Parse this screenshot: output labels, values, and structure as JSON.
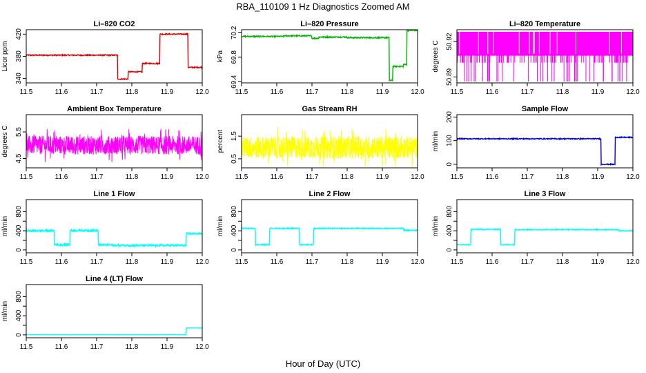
{
  "figure": {
    "title": "RBA_110109  1 Hz Diagnostics Zoomed AM",
    "xlabel": "Hour of Day (UTC)"
  },
  "chart_data": [
    {
      "type": "line",
      "title": "Li–820 CO2",
      "ylabel": "Licor ppm",
      "color": "#e00000",
      "xlim": [
        11.5,
        12.0
      ],
      "ylim": [
        332,
        428
      ],
      "xticks": [
        "11.5",
        "11.6",
        "11.7",
        "11.8",
        "11.9",
        "12.0"
      ],
      "yticks": [
        340,
        380,
        420
      ],
      "ytick_labels": [
        "340",
        "380",
        "420"
      ],
      "segments": [
        [
          11.5,
          11.76,
          382
        ],
        [
          11.76,
          11.79,
          339
        ],
        [
          11.79,
          11.83,
          352
        ],
        [
          11.83,
          11.88,
          367
        ],
        [
          11.88,
          11.96,
          420
        ],
        [
          11.96,
          12.0,
          360
        ]
      ],
      "noise": 1
    },
    {
      "type": "line",
      "title": "Li–820 Pressure",
      "ylabel": "kPa",
      "color": "#00b400",
      "xlim": [
        11.5,
        12.0
      ],
      "ylim": [
        69.38,
        70.25
      ],
      "xticks": [
        "11.5",
        "11.6",
        "11.7",
        "11.8",
        "11.9",
        "12.0"
      ],
      "yticks": [
        69.4,
        69.8,
        70.2
      ],
      "ytick_labels": [
        "69.4",
        "69.8",
        "70.2"
      ],
      "segments": [
        [
          11.5,
          11.62,
          70.14
        ],
        [
          11.62,
          11.7,
          70.15
        ],
        [
          11.7,
          11.72,
          70.11
        ],
        [
          11.72,
          11.8,
          70.13
        ],
        [
          11.8,
          11.92,
          70.12
        ],
        [
          11.92,
          11.93,
          69.42
        ],
        [
          11.93,
          11.96,
          69.65
        ],
        [
          11.96,
          11.97,
          69.68
        ],
        [
          11.97,
          12.0,
          70.24
        ]
      ],
      "noise": 0.01
    },
    {
      "type": "line",
      "title": "Li–820 Temperature",
      "ylabel": "degrees C",
      "color": "#ff00ff",
      "xlim": [
        11.5,
        12.0
      ],
      "ylim": [
        50.885,
        50.93
      ],
      "xticks": [
        "11.5",
        "11.6",
        "11.7",
        "11.8",
        "11.9",
        "12.0"
      ],
      "yticks": [
        50.89,
        50.92
      ],
      "ytick_labels": [
        "50.89",
        "50.92"
      ],
      "segments": [
        [
          11.5,
          12.0,
          50.91
        ]
      ],
      "noise": 0.02,
      "style": "dense-band"
    },
    {
      "type": "line",
      "title": "Ambient Box Temperature",
      "ylabel": "degrees C",
      "color": "#ff00ff",
      "xlim": [
        11.5,
        12.0
      ],
      "ylim": [
        4.15,
        6.15
      ],
      "xticks": [
        "11.5",
        "11.6",
        "11.7",
        "11.8",
        "11.9",
        "12.0"
      ],
      "yticks": [
        4.5,
        5.5
      ],
      "ytick_labels": [
        "4.5",
        "5.5"
      ],
      "segments": [
        [
          11.5,
          12.0,
          5.0
        ]
      ],
      "noise": 0.35,
      "style": "noisy"
    },
    {
      "type": "line",
      "title": "Gas Stream RH",
      "ylabel": "percent",
      "color": "#ffff00",
      "xlim": [
        11.5,
        12.0
      ],
      "ylim": [
        0.1,
        2.45
      ],
      "xticks": [
        "11.5",
        "11.6",
        "11.7",
        "11.8",
        "11.9",
        "12.0"
      ],
      "yticks": [
        0.5,
        1.5
      ],
      "ytick_labels": [
        "0.5",
        "1.5"
      ],
      "segments": [
        [
          11.5,
          12.0,
          1.0
        ]
      ],
      "noise": 0.5,
      "style": "noisy"
    },
    {
      "type": "line",
      "title": "Sample Flow",
      "ylabel": "ml/min",
      "color": "#0000c8",
      "xlim": [
        11.5,
        12.0
      ],
      "ylim": [
        -15,
        210
      ],
      "xticks": [
        "11.5",
        "11.6",
        "11.7",
        "11.8",
        "11.9",
        "12.0"
      ],
      "yticks": [
        0,
        100,
        200
      ],
      "ytick_labels": [
        "0",
        "100",
        "200"
      ],
      "segments": [
        [
          11.5,
          11.91,
          108
        ],
        [
          11.91,
          11.95,
          0
        ],
        [
          11.95,
          12.0,
          114
        ]
      ],
      "noise": 2
    },
    {
      "type": "line",
      "title": "Line 1 Flow",
      "ylabel": "ml/min",
      "color": "#00ffff",
      "xlim": [
        11.5,
        12.0
      ],
      "ylim": [
        -60,
        1050
      ],
      "xticks": [
        "11.5",
        "11.6",
        "11.7",
        "11.8",
        "11.9",
        "12.0"
      ],
      "yticks": [
        0,
        200,
        400,
        600,
        800
      ],
      "ytick_labels": [
        "0",
        "",
        "400",
        "",
        "800"
      ],
      "segments": [
        [
          11.5,
          11.58,
          400
        ],
        [
          11.58,
          11.625,
          110
        ],
        [
          11.625,
          11.705,
          405
        ],
        [
          11.705,
          11.745,
          105
        ],
        [
          11.745,
          11.955,
          95
        ],
        [
          11.955,
          12.0,
          340
        ]
      ],
      "noise": 20
    },
    {
      "type": "line",
      "title": "Line 2 Flow",
      "ylabel": "ml/min",
      "color": "#00ffff",
      "xlim": [
        11.5,
        12.0
      ],
      "ylim": [
        -60,
        1050
      ],
      "xticks": [
        "11.5",
        "11.6",
        "11.7",
        "11.8",
        "11.9",
        "12.0"
      ],
      "yticks": [
        0,
        200,
        400,
        600,
        800
      ],
      "ytick_labels": [
        "0",
        "",
        "400",
        "",
        "800"
      ],
      "segments": [
        [
          11.5,
          11.54,
          450
        ],
        [
          11.54,
          11.58,
          110
        ],
        [
          11.58,
          11.665,
          450
        ],
        [
          11.665,
          11.705,
          110
        ],
        [
          11.705,
          11.96,
          450
        ],
        [
          11.96,
          12.0,
          410
        ]
      ],
      "noise": 10
    },
    {
      "type": "line",
      "title": "Line 3 Flow",
      "ylabel": "ml/min",
      "color": "#00ffff",
      "xlim": [
        11.5,
        12.0
      ],
      "ylim": [
        -60,
        1050
      ],
      "xticks": [
        "11.5",
        "11.6",
        "11.7",
        "11.8",
        "11.9",
        "12.0"
      ],
      "yticks": [
        0,
        200,
        400,
        600,
        800
      ],
      "ytick_labels": [
        "0",
        "",
        "400",
        "",
        "800"
      ],
      "segments": [
        [
          11.5,
          11.54,
          110
        ],
        [
          11.54,
          11.625,
          430
        ],
        [
          11.625,
          11.665,
          110
        ],
        [
          11.665,
          11.96,
          425
        ],
        [
          11.96,
          12.0,
          400
        ]
      ],
      "noise": 10
    },
    {
      "type": "line",
      "title": "Line 4 (LT) Flow",
      "ylabel": "ml/min",
      "color": "#00ffff",
      "xlim": [
        11.5,
        12.0
      ],
      "ylim": [
        -60,
        1050
      ],
      "xticks": [
        "11.5",
        "11.6",
        "11.7",
        "11.8",
        "11.9",
        "12.0"
      ],
      "yticks": [
        0,
        200,
        400,
        600,
        800
      ],
      "ytick_labels": [
        "0",
        "",
        "400",
        "",
        "800"
      ],
      "segments": [
        [
          11.5,
          11.955,
          5
        ],
        [
          11.955,
          12.0,
          145
        ]
      ],
      "noise": 3
    }
  ]
}
